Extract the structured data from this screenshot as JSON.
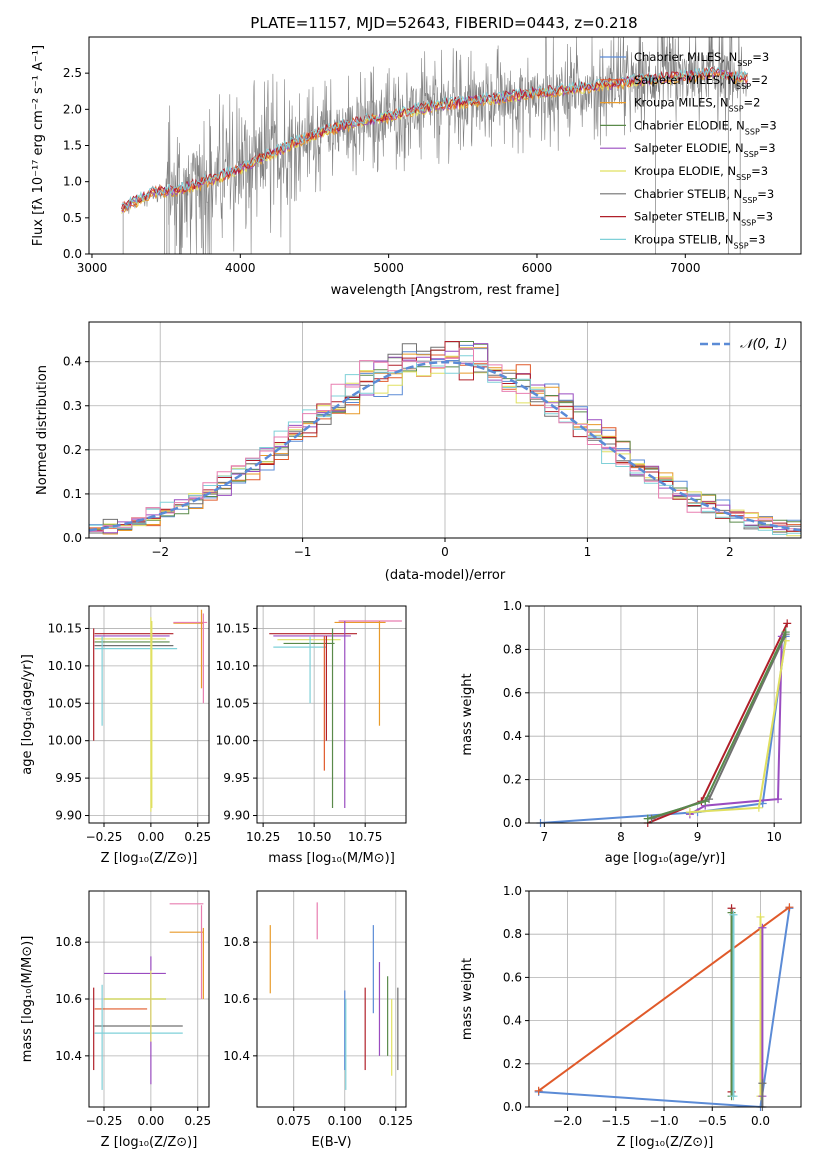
{
  "colors": [
    "#5b8bd6",
    "#e05a2a",
    "#e89a2a",
    "#5a8a4a",
    "#9a4cc0",
    "#e0e060",
    "#707070",
    "#b0202a",
    "#7fd0d8",
    "#e87eb0"
  ],
  "chart_data": [
    {
      "id": "spectrum",
      "type": "line",
      "title": "PLATE=1157, MJD=52643, FIBERID=0443, z=0.218",
      "xlabel": "wavelength [Angstrom, rest frame]",
      "ylabel": "Flux [fλ 10⁻¹⁷ erg cm⁻² s⁻¹ A⁻¹]",
      "xlim": [
        2980,
        7780
      ],
      "ylim": [
        0,
        3.0
      ],
      "xticks": [
        "3000",
        "4000",
        "5000",
        "6000",
        "7000"
      ],
      "yticks": [
        "0.0",
        "0.5",
        "1.0",
        "1.5",
        "2.0",
        "2.5"
      ],
      "grid": false,
      "legend_position": "top-right",
      "legend": [
        "Chabrier MILES, N_SSP=3",
        "Salpeter MILES, N_SSP=2",
        "Kroupa MILES, N_SSP=2",
        "Chabrier ELODIE, N_SSP=3",
        "Salpeter ELODIE, N_SSP=3",
        "Kroupa ELODIE, N_SSP=3",
        "Chabrier STELIB, N_SSP=3",
        "Salpeter STELIB, N_SSP=3",
        "Kroupa STELIB, N_SSP=3"
      ],
      "continuum": {
        "x": [
          3200,
          3400,
          3600,
          3800,
          4000,
          4200,
          4400,
          4600,
          4800,
          5000,
          5200,
          5400,
          5600,
          5800,
          6000,
          6200,
          6400,
          6600,
          6800,
          7000,
          7200,
          7400
        ],
        "y": [
          0.6,
          0.83,
          0.87,
          1.0,
          1.15,
          1.35,
          1.55,
          1.7,
          1.8,
          1.88,
          1.98,
          2.05,
          2.1,
          2.15,
          2.2,
          2.25,
          2.3,
          2.35,
          2.4,
          2.43,
          2.48,
          2.4
        ]
      }
    },
    {
      "id": "residuals",
      "type": "histogram",
      "xlabel": "(data-model)/error",
      "ylabel": "Normed distribution",
      "xlim": [
        -2.5,
        2.5
      ],
      "ylim": [
        0,
        0.49
      ],
      "xticks": [
        "−2",
        "−1",
        "0",
        "1",
        "2"
      ],
      "yticks": [
        "0.0",
        "0.1",
        "0.2",
        "0.3",
        "0.4"
      ],
      "grid": true,
      "legend_position": "top-right",
      "legend": [
        "𝒩(0, 1)"
      ],
      "reference_curve": "normal(0,1)"
    },
    {
      "id": "age_vs_Z",
      "type": "scatter",
      "xlabel": "Z [log₁₀(Z/Z⊙)]",
      "ylabel": "age  [log₁₀(age/yr)]",
      "xlim": [
        -0.33,
        0.31
      ],
      "ylim": [
        9.89,
        10.18
      ],
      "xticks": [
        {
          "v": -0.25,
          "t": "−0.25"
        },
        {
          "v": 0,
          "t": "0.00"
        },
        {
          "v": 0.25,
          "t": "0.25"
        }
      ],
      "yticks": [
        {
          "v": 9.9,
          "t": "9.90"
        },
        {
          "v": 9.95,
          "t": "9.95"
        },
        {
          "v": 10.0,
          "t": "10.00"
        },
        {
          "v": 10.05,
          "t": "10.05"
        },
        {
          "v": 10.1,
          "t": "10.10"
        },
        {
          "v": 10.15,
          "t": "10.15"
        }
      ],
      "grid": true,
      "hbars": [
        [
          -0.3,
          0.12,
          10.143,
          7
        ],
        [
          -0.3,
          0.1,
          10.14,
          4
        ],
        [
          -0.3,
          0.08,
          10.136,
          5
        ],
        [
          -0.3,
          0.1,
          10.132,
          3
        ],
        [
          -0.3,
          0.12,
          10.127,
          6
        ],
        [
          -0.3,
          0.14,
          10.123,
          8
        ],
        [
          0.12,
          0.28,
          10.157,
          2
        ],
        [
          0.12,
          0.3,
          10.158,
          9
        ]
      ],
      "vbars": [
        [
          -0.305,
          10.0,
          10.15,
          7
        ],
        [
          -0.26,
          10.02,
          10.14,
          8
        ],
        [
          0.0,
          9.905,
          10.165,
          5
        ],
        [
          0.005,
          9.91,
          10.16,
          5
        ],
        [
          0.27,
          10.07,
          10.175,
          2
        ],
        [
          0.28,
          10.05,
          10.17,
          9
        ]
      ]
    },
    {
      "id": "age_vs_mass",
      "type": "scatter",
      "xlabel": "mass [log₁₀(M/M⊙)]",
      "ylabel": "",
      "xlim": [
        10.22,
        10.95
      ],
      "ylim": [
        9.89,
        10.18
      ],
      "xticks": [
        {
          "v": 10.25,
          "t": "10.25"
        },
        {
          "v": 10.5,
          "t": "10.50"
        },
        {
          "v": 10.75,
          "t": "10.75"
        }
      ],
      "yticks": [
        {
          "v": 9.9,
          "t": "9.90"
        },
        {
          "v": 9.95,
          "t": "9.95"
        },
        {
          "v": 10.0,
          "t": "10.00"
        },
        {
          "v": 10.05,
          "t": "10.05"
        },
        {
          "v": 10.1,
          "t": "10.10"
        },
        {
          "v": 10.15,
          "t": "10.15"
        }
      ],
      "grid": true,
      "hbars": [
        [
          10.28,
          10.71,
          10.143,
          7
        ],
        [
          10.3,
          10.68,
          10.14,
          4
        ],
        [
          10.32,
          10.63,
          10.135,
          5
        ],
        [
          10.35,
          10.6,
          10.13,
          3
        ],
        [
          10.3,
          10.56,
          10.125,
          8
        ],
        [
          10.6,
          10.85,
          10.158,
          2
        ],
        [
          10.62,
          10.93,
          10.16,
          9
        ]
      ],
      "vbars": [
        [
          10.48,
          10.05,
          10.14,
          8
        ],
        [
          10.55,
          9.96,
          10.14,
          1
        ],
        [
          10.56,
          10.0,
          10.14,
          7
        ],
        [
          10.59,
          9.91,
          10.15,
          3
        ],
        [
          10.65,
          9.91,
          10.16,
          4
        ],
        [
          10.82,
          10.02,
          10.16,
          2
        ]
      ]
    },
    {
      "id": "mass_weight_vs_age",
      "type": "line",
      "xlabel": "age  [log₁₀(age/yr)]",
      "ylabel": "mass weight",
      "xlim": [
        6.8,
        10.35
      ],
      "ylim": [
        0,
        1.0
      ],
      "xticks": [
        {
          "v": 7,
          "t": "7"
        },
        {
          "v": 8,
          "t": "8"
        },
        {
          "v": 9,
          "t": "9"
        },
        {
          "v": 10,
          "t": "10"
        }
      ],
      "yticks": [
        {
          "v": 0,
          "t": "0.0"
        },
        {
          "v": 0.2,
          "t": "0.2"
        },
        {
          "v": 0.4,
          "t": "0.4"
        },
        {
          "v": 0.6,
          "t": "0.6"
        },
        {
          "v": 0.8,
          "t": "0.8"
        },
        {
          "v": 1.0,
          "t": "1.0"
        }
      ],
      "grid": true,
      "series": [
        {
          "c": 0,
          "x": [
            6.95,
            9.0,
            9.85,
            10.15
          ],
          "y": [
            0.0,
            0.05,
            0.09,
            0.86
          ]
        },
        {
          "c": 7,
          "x": [
            8.35,
            9.05,
            10.17
          ],
          "y": [
            0.0,
            0.1,
            0.92
          ]
        },
        {
          "c": 4,
          "x": [
            8.9,
            9.1,
            10.05,
            10.1
          ],
          "y": [
            0.04,
            0.08,
            0.11,
            0.86
          ]
        },
        {
          "c": 5,
          "x": [
            8.9,
            9.8,
            10.15
          ],
          "y": [
            0.05,
            0.07,
            0.84
          ]
        },
        {
          "c": 8,
          "x": [
            8.35,
            9.1,
            10.15
          ],
          "y": [
            0.02,
            0.1,
            0.88
          ]
        },
        {
          "c": 6,
          "x": [
            8.4,
            9.15,
            10.15
          ],
          "y": [
            0.02,
            0.11,
            0.87
          ]
        },
        {
          "c": 3,
          "x": [
            8.35,
            9.1,
            10.15
          ],
          "y": [
            0.02,
            0.1,
            0.88
          ]
        }
      ]
    },
    {
      "id": "mass_vs_Z",
      "type": "scatter",
      "xlabel": "Z [log₁₀(Z/Z⊙)]",
      "ylabel": "mass [log₁₀(M/M⊙)]",
      "xlim": [
        -0.33,
        0.31
      ],
      "ylim": [
        10.22,
        10.98
      ],
      "xticks": [
        {
          "v": -0.25,
          "t": "−0.25"
        },
        {
          "v": 0,
          "t": "0.00"
        },
        {
          "v": 0.25,
          "t": "0.25"
        }
      ],
      "yticks": [
        {
          "v": 10.4,
          "t": "10.4"
        },
        {
          "v": 10.6,
          "t": "10.6"
        },
        {
          "v": 10.8,
          "t": "10.8"
        }
      ],
      "grid": true,
      "hbars": [
        [
          0.1,
          0.28,
          10.935,
          9
        ],
        [
          0.1,
          0.28,
          10.835,
          2
        ],
        [
          -0.25,
          0.08,
          10.69,
          4
        ],
        [
          -0.25,
          0.08,
          10.6,
          3
        ],
        [
          -0.25,
          0.08,
          10.6,
          5
        ],
        [
          -0.3,
          -0.02,
          10.565,
          1
        ],
        [
          -0.3,
          0.17,
          10.505,
          6
        ],
        [
          -0.3,
          0.17,
          10.48,
          8
        ]
      ],
      "vbars": [
        [
          -0.305,
          10.35,
          10.64,
          7
        ],
        [
          -0.26,
          10.28,
          10.65,
          8
        ],
        [
          0.0,
          10.3,
          10.75,
          4
        ],
        [
          0.0,
          10.45,
          10.7,
          5
        ],
        [
          0.27,
          10.6,
          10.93,
          9
        ],
        [
          0.28,
          10.6,
          10.85,
          2
        ]
      ]
    },
    {
      "id": "mass_vs_EBV",
      "type": "scatter",
      "xlabel": "E(B-V)",
      "ylabel": "",
      "xlim": [
        0.057,
        0.13
      ],
      "ylim": [
        10.22,
        10.98
      ],
      "xticks": [
        {
          "v": 0.075,
          "t": "0.075"
        },
        {
          "v": 0.1,
          "t": "0.100"
        },
        {
          "v": 0.125,
          "t": "0.125"
        }
      ],
      "yticks": [
        {
          "v": 10.4,
          "t": "10.4"
        },
        {
          "v": 10.6,
          "t": "10.6"
        },
        {
          "v": 10.8,
          "t": "10.8"
        }
      ],
      "grid": true,
      "vbars": [
        [
          0.0635,
          10.62,
          10.86,
          2
        ],
        [
          0.0865,
          10.81,
          10.94,
          9
        ],
        [
          0.1,
          10.35,
          10.63,
          0
        ],
        [
          0.1005,
          10.28,
          10.6,
          8
        ],
        [
          0.11,
          10.35,
          10.64,
          7
        ],
        [
          0.114,
          10.55,
          10.86,
          0
        ],
        [
          0.117,
          10.4,
          10.73,
          4
        ],
        [
          0.121,
          10.4,
          10.68,
          3
        ],
        [
          0.123,
          10.33,
          10.6,
          5
        ],
        [
          0.126,
          10.35,
          10.64,
          6
        ]
      ]
    },
    {
      "id": "mass_weight_vs_Z",
      "type": "line",
      "xlabel": "Z [log₁₀(Z/Z⊙)]",
      "ylabel": "mass weight",
      "xlim": [
        -2.4,
        0.42
      ],
      "ylim": [
        0,
        1.0
      ],
      "xticks": [
        {
          "v": -2.0,
          "t": "−2.0"
        },
        {
          "v": -1.5,
          "t": "−1.5"
        },
        {
          "v": -1.0,
          "t": "−1.0"
        },
        {
          "v": -0.5,
          "t": "−0.5"
        },
        {
          "v": 0,
          "t": "0.0"
        }
      ],
      "yticks": [
        {
          "v": 0,
          "t": "0.0"
        },
        {
          "v": 0.2,
          "t": "0.2"
        },
        {
          "v": 0.4,
          "t": "0.4"
        },
        {
          "v": 0.6,
          "t": "0.6"
        },
        {
          "v": 0.8,
          "t": "0.8"
        },
        {
          "v": 1.0,
          "t": "1.0"
        }
      ],
      "grid": true,
      "series": [
        {
          "c": 0,
          "x": [
            -2.3,
            0.0,
            0.3
          ],
          "y": [
            0.07,
            0.0,
            0.92
          ]
        },
        {
          "c": 1,
          "x": [
            -2.3,
            0.3
          ],
          "y": [
            0.075,
            0.925
          ]
        },
        {
          "c": 7,
          "x": [
            -0.3,
            -0.3
          ],
          "y": [
            0.07,
            0.92
          ]
        },
        {
          "c": 3,
          "x": [
            -0.3,
            -0.3
          ],
          "y": [
            0.05,
            0.9
          ]
        },
        {
          "c": 8,
          "x": [
            -0.28,
            -0.28
          ],
          "y": [
            0.05,
            0.89
          ]
        },
        {
          "c": 5,
          "x": [
            0.0,
            0.0
          ],
          "y": [
            0.05,
            0.88
          ]
        },
        {
          "c": 4,
          "x": [
            0.02,
            0.02
          ],
          "y": [
            0.05,
            0.83
          ]
        },
        {
          "c": 6,
          "x": [
            0.02,
            0.02
          ],
          "y": [
            0.0,
            0.11
          ]
        }
      ]
    }
  ]
}
